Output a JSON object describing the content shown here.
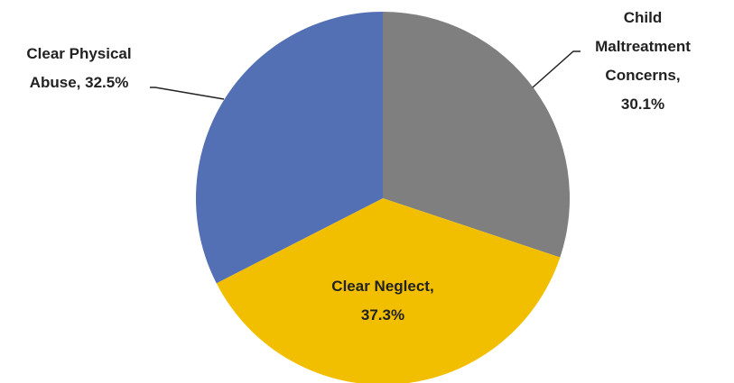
{
  "chart_data": {
    "type": "pie",
    "categories": [
      "Child Maltreatment Concerns",
      "Clear Neglect",
      "Clear Physical Abuse"
    ],
    "values": [
      30.1,
      37.3,
      32.5
    ],
    "value_labels": [
      "30.1%",
      "37.3%",
      "32.5%"
    ],
    "colors": [
      "#7f7f7f",
      "#f2bf00",
      "#5470b4"
    ]
  }
}
